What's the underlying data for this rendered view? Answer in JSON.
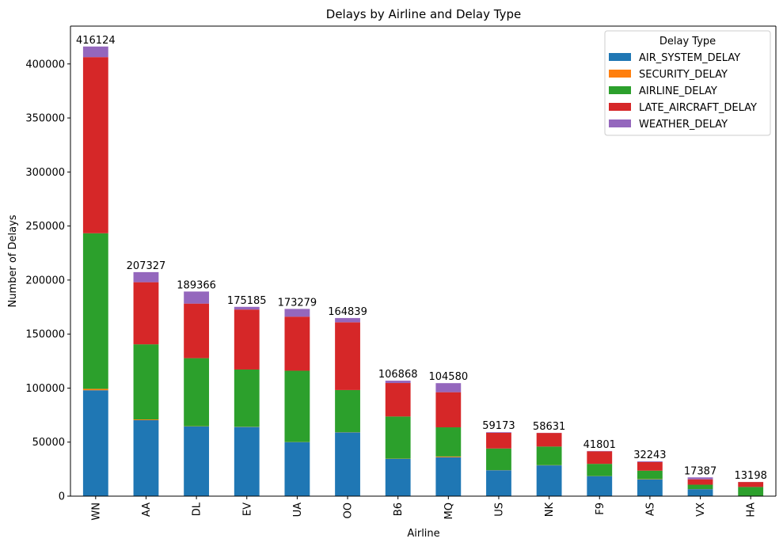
{
  "chart_data": {
    "type": "bar",
    "stacked": true,
    "title": "Delays by Airline and Delay Type",
    "xlabel": "Airline",
    "ylabel": "Number of Delays",
    "ylim": [
      0,
      435000
    ],
    "yticks": [
      0,
      50000,
      100000,
      150000,
      200000,
      250000,
      300000,
      350000,
      400000
    ],
    "grid": false,
    "legend": {
      "title": "Delay Type",
      "placement": "top-right"
    },
    "categories": [
      "WN",
      "AA",
      "DL",
      "EV",
      "UA",
      "OO",
      "B6",
      "MQ",
      "US",
      "NK",
      "F9",
      "AS",
      "VX",
      "HA"
    ],
    "totals": [
      416124,
      207327,
      189366,
      175185,
      173279,
      164839,
      106868,
      104580,
      59173,
      58631,
      41801,
      32243,
      17387,
      13198
    ],
    "series": [
      {
        "name": "AIR_SYSTEM_DELAY",
        "color": "#1f77b4",
        "values": [
          98000,
          70300,
          64500,
          64000,
          50000,
          59000,
          34500,
          36000,
          24000,
          28500,
          18500,
          15500,
          6500,
          100
        ]
      },
      {
        "name": "SECURITY_DELAY",
        "color": "#ff7f0e",
        "values": [
          1300,
          700,
          200,
          200,
          100,
          200,
          200,
          700,
          100,
          200,
          100,
          300,
          100,
          100
        ]
      },
      {
        "name": "AIRLINE_DELAY",
        "color": "#2ca02c",
        "values": [
          144000,
          69500,
          63000,
          53000,
          66000,
          39000,
          39000,
          27000,
          20000,
          17200,
          11300,
          7800,
          4000,
          8300
        ]
      },
      {
        "name": "LATE_AIRCRAFT_DELAY",
        "color": "#d62728",
        "values": [
          163000,
          57500,
          50500,
          55500,
          50000,
          62700,
          31000,
          32500,
          14500,
          12600,
          11600,
          8000,
          5000,
          4600
        ]
      },
      {
        "name": "WEATHER_DELAY",
        "color": "#9467bd",
        "values": [
          9824,
          9327,
          11166,
          2485,
          7179,
          3939,
          2168,
          8380,
          573,
          131,
          301,
          643,
          1787,
          98
        ]
      }
    ]
  }
}
